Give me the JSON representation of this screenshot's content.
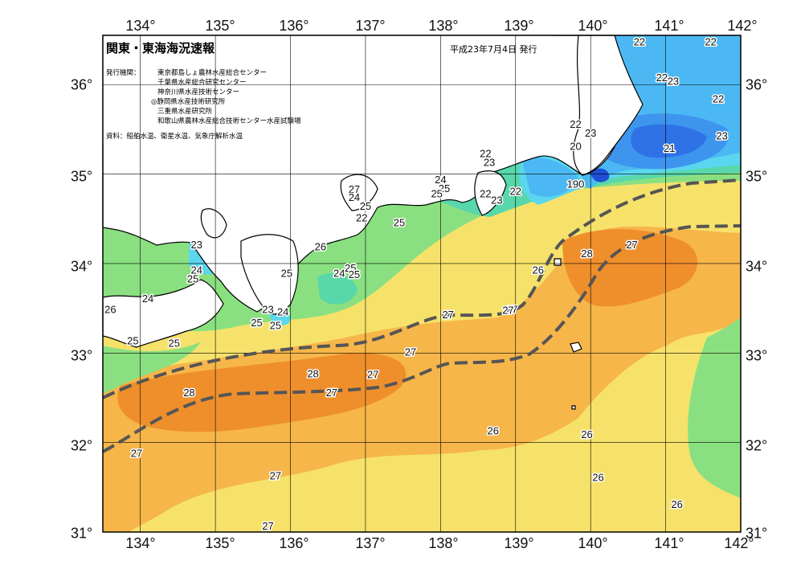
{
  "header": {
    "title": "関東・東海海況速報",
    "date": "平成23年7月4日 発行"
  },
  "issuers": {
    "label": "発行機関：",
    "list": [
      "東京都島しょ農林水産総合センター",
      "千葉県水産総合研究センター",
      "神奈川県水産技術センター",
      "◎静岡県水産技術研究所",
      "三重県水産研究所",
      "和歌山県農林水産総合技術センター水産試験場"
    ]
  },
  "source": "資料：船舶水温、衛星水温、気象庁解析水温",
  "axes": {
    "lon_labels": [
      "134°",
      "135°",
      "136°",
      "137°",
      "138°",
      "139°",
      "140°",
      "141°",
      "142°"
    ],
    "lat_labels": [
      "36°",
      "35°",
      "34°",
      "33°",
      "32°",
      "31°"
    ]
  },
  "isotherm_labels": [
    {
      "text": "22",
      "lon": 140.65,
      "lat": 36.47
    },
    {
      "text": "22",
      "lon": 141.6,
      "lat": 36.47
    },
    {
      "text": "22",
      "lon": 140.95,
      "lat": 36.07
    },
    {
      "text": "23",
      "lon": 141.1,
      "lat": 36.03
    },
    {
      "text": "22",
      "lon": 141.7,
      "lat": 35.83
    },
    {
      "text": "22",
      "lon": 139.8,
      "lat": 35.55
    },
    {
      "text": "23",
      "lon": 140.0,
      "lat": 35.45
    },
    {
      "text": "23",
      "lon": 141.75,
      "lat": 35.42
    },
    {
      "text": "20",
      "lon": 139.8,
      "lat": 35.3
    },
    {
      "text": "21",
      "lon": 141.05,
      "lat": 35.28
    },
    {
      "text": "22",
      "lon": 138.6,
      "lat": 35.22
    },
    {
      "text": "23",
      "lon": 138.65,
      "lat": 35.12
    },
    {
      "text": "24",
      "lon": 138.0,
      "lat": 34.93
    },
    {
      "text": "25",
      "lon": 138.05,
      "lat": 34.83
    },
    {
      "text": "25",
      "lon": 137.95,
      "lat": 34.77
    },
    {
      "text": "22",
      "lon": 138.6,
      "lat": 34.77
    },
    {
      "text": "23",
      "lon": 138.75,
      "lat": 34.7
    },
    {
      "text": "22",
      "lon": 139.0,
      "lat": 34.8
    },
    {
      "text": "190",
      "lon": 139.8,
      "lat": 34.88
    },
    {
      "text": "25",
      "lon": 137.45,
      "lat": 34.45
    },
    {
      "text": "27",
      "lon": 136.85,
      "lat": 34.82
    },
    {
      "text": "24",
      "lon": 136.85,
      "lat": 34.73
    },
    {
      "text": "25",
      "lon": 137.0,
      "lat": 34.63
    },
    {
      "text": "22",
      "lon": 136.95,
      "lat": 34.5
    },
    {
      "text": "23",
      "lon": 134.75,
      "lat": 34.2
    },
    {
      "text": "24",
      "lon": 134.75,
      "lat": 33.92
    },
    {
      "text": "25",
      "lon": 134.7,
      "lat": 33.82
    },
    {
      "text": "26",
      "lon": 136.4,
      "lat": 34.18
    },
    {
      "text": "25",
      "lon": 135.95,
      "lat": 33.88
    },
    {
      "text": "24",
      "lon": 136.65,
      "lat": 33.88
    },
    {
      "text": "25",
      "lon": 136.8,
      "lat": 33.94
    },
    {
      "text": "25",
      "lon": 136.85,
      "lat": 33.87
    },
    {
      "text": "24",
      "lon": 134.1,
      "lat": 33.6
    },
    {
      "text": "26",
      "lon": 133.6,
      "lat": 33.48
    },
    {
      "text": "23",
      "lon": 135.7,
      "lat": 33.48
    },
    {
      "text": "24",
      "lon": 135.9,
      "lat": 33.45
    },
    {
      "text": "25",
      "lon": 135.55,
      "lat": 33.33
    },
    {
      "text": "25",
      "lon": 135.8,
      "lat": 33.3
    },
    {
      "text": "25",
      "lon": 133.9,
      "lat": 33.13
    },
    {
      "text": "25",
      "lon": 134.45,
      "lat": 33.1
    },
    {
      "text": "26",
      "lon": 139.3,
      "lat": 33.92
    },
    {
      "text": "27",
      "lon": 138.1,
      "lat": 33.42
    },
    {
      "text": "27",
      "lon": 138.95,
      "lat": 33.48
    },
    {
      "text": "27",
      "lon": 137.6,
      "lat": 33.0
    },
    {
      "text": "27",
      "lon": 138.9,
      "lat": 33.47
    },
    {
      "text": "27",
      "lon": 137.1,
      "lat": 32.75
    },
    {
      "text": "27",
      "lon": 136.55,
      "lat": 32.55
    },
    {
      "text": "28",
      "lon": 136.3,
      "lat": 32.76
    },
    {
      "text": "28",
      "lon": 134.65,
      "lat": 32.55
    },
    {
      "text": "28",
      "lon": 139.95,
      "lat": 34.1
    },
    {
      "text": "27",
      "lon": 140.55,
      "lat": 34.2
    },
    {
      "text": "26",
      "lon": 138.7,
      "lat": 32.12
    },
    {
      "text": "26",
      "lon": 139.95,
      "lat": 32.08
    },
    {
      "text": "26",
      "lon": 140.1,
      "lat": 31.6
    },
    {
      "text": "26",
      "lon": 141.15,
      "lat": 31.3
    },
    {
      "text": "27",
      "lon": 133.95,
      "lat": 31.87
    },
    {
      "text": "27",
      "lon": 135.8,
      "lat": 31.62
    },
    {
      "text": "27",
      "lon": 135.7,
      "lat": 31.06
    }
  ],
  "colors": {
    "c19": "#1d4fd6",
    "c20": "#2f72e6",
    "c21": "#3d95ee",
    "c22": "#4cb8f3",
    "c23": "#5ad6ee",
    "c24": "#58d7aa",
    "c25": "#8ae080",
    "c26": "#f6e26a",
    "c27": "#f6b64a",
    "c28": "#ef8f2c",
    "land": "#ffffff",
    "grid": "#000000",
    "kuroshio": "#555555"
  }
}
